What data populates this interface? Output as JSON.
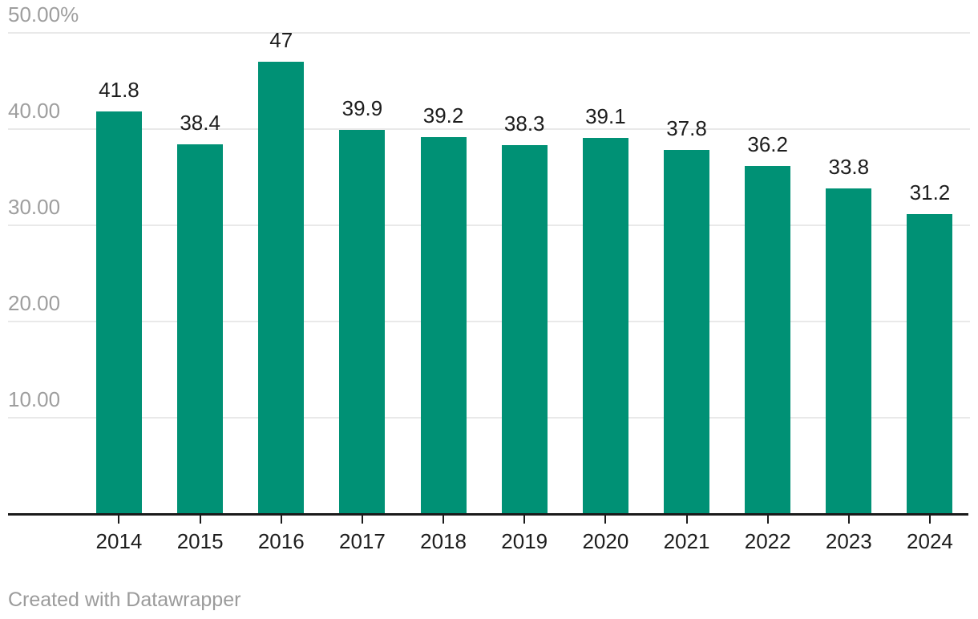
{
  "chart_data": {
    "type": "bar",
    "categories": [
      "2014",
      "2015",
      "2016",
      "2017",
      "2018",
      "2019",
      "2020",
      "2021",
      "2022",
      "2023",
      "2024"
    ],
    "values": [
      41.8,
      38.4,
      47,
      39.9,
      39.2,
      38.3,
      39.1,
      37.8,
      36.2,
      33.8,
      31.2
    ],
    "value_labels": [
      "41.8",
      "38.4",
      "47",
      "39.9",
      "39.2",
      "38.3",
      "39.1",
      "37.8",
      "36.2",
      "33.8",
      "31.2"
    ],
    "title": "",
    "xlabel": "",
    "ylabel": "",
    "ylim": [
      0,
      50
    ],
    "y_ticks": [
      {
        "value": 50,
        "label": "50.00%"
      },
      {
        "value": 40,
        "label": "40.00"
      },
      {
        "value": 30,
        "label": "30.00"
      },
      {
        "value": 20,
        "label": "20.00"
      },
      {
        "value": 10,
        "label": "10.00"
      }
    ],
    "grid": true,
    "legend": "none",
    "colors": {
      "bar": "#009175",
      "gridline": "#e9e9e9",
      "axis_line": "#1a1a1a",
      "category_label": "#1d1d1d",
      "value_label": "#1d1d1d",
      "y_tick_label": "#9e9e9e"
    }
  },
  "footer": {
    "attribution": "Created with Datawrapper",
    "color": "#9b9b9b"
  }
}
